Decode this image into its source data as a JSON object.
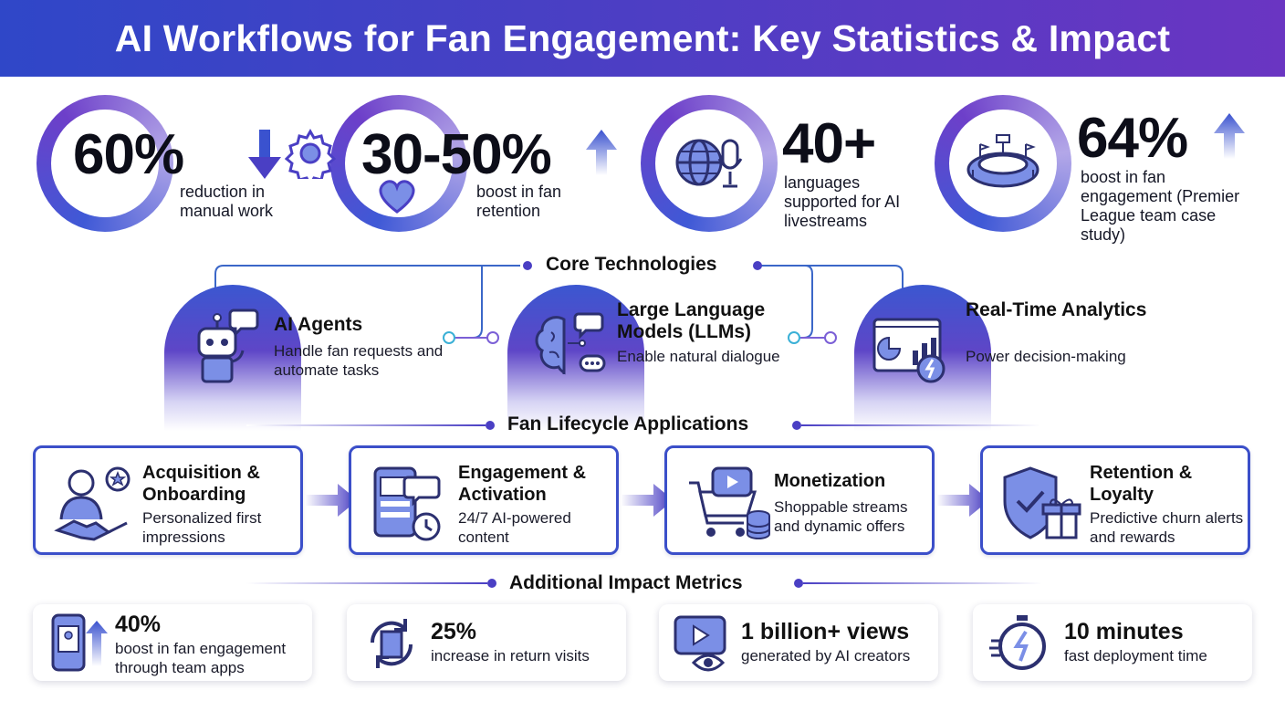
{
  "title": "AI Workflows for Fan Engagement: Key Statistics & Impact",
  "stats": [
    {
      "value": "60%",
      "desc": "reduction in manual work",
      "icon": "gear-icon",
      "trend": "down"
    },
    {
      "value": "30-50%",
      "desc": "boost in fan retention",
      "icon": "heart-icon",
      "trend": "up"
    },
    {
      "value": "40+",
      "desc": "languages supported for AI livestreams",
      "icon": "globe-microphone-icon"
    },
    {
      "value": "64%",
      "desc": "boost in fan engagement (Premier League team case study)",
      "icon": "stadium-icon",
      "trend": "up"
    }
  ],
  "core": {
    "heading": "Core Technologies",
    "items": [
      {
        "title": "AI Agents",
        "desc": "Handle fan requests and automate tasks",
        "icon": "robot-icon"
      },
      {
        "title": "Large Language Models (LLMs)",
        "desc": "Enable natural dialogue",
        "icon": "brain-chat-icon"
      },
      {
        "title": "Real-Time Analytics",
        "desc": "Power decision-making",
        "icon": "dashboard-icon"
      }
    ]
  },
  "lifecycle": {
    "heading": "Fan Lifecycle Applications",
    "items": [
      {
        "title": "Acquisition & Onboarding",
        "desc": "Personalized first impressions",
        "icon": "handshake-icon"
      },
      {
        "title": "Engagement & Activation",
        "desc": "24/7 AI-powered content",
        "icon": "phone-chat-icon"
      },
      {
        "title": "Monetization",
        "desc": "Shoppable streams and dynamic offers",
        "icon": "cart-video-icon"
      },
      {
        "title": "Retention & Loyalty",
        "desc": "Predictive churn alerts and rewards",
        "icon": "shield-gift-icon"
      }
    ]
  },
  "metrics": {
    "heading": "Additional Impact Metrics",
    "items": [
      {
        "value": "40%",
        "desc": "boost in fan engagement through team apps",
        "icon": "phone-up-icon"
      },
      {
        "value": "25%",
        "desc": "increase in return visits",
        "icon": "return-door-icon"
      },
      {
        "value": "1 billion+ views",
        "desc": "generated by AI creators",
        "icon": "video-eye-icon"
      },
      {
        "value": "10 minutes",
        "desc": "fast deployment time",
        "icon": "stopwatch-icon"
      }
    ]
  },
  "colors": {
    "primary": "#3b4fc9",
    "accent": "#6a35c2",
    "text": "#111111"
  }
}
